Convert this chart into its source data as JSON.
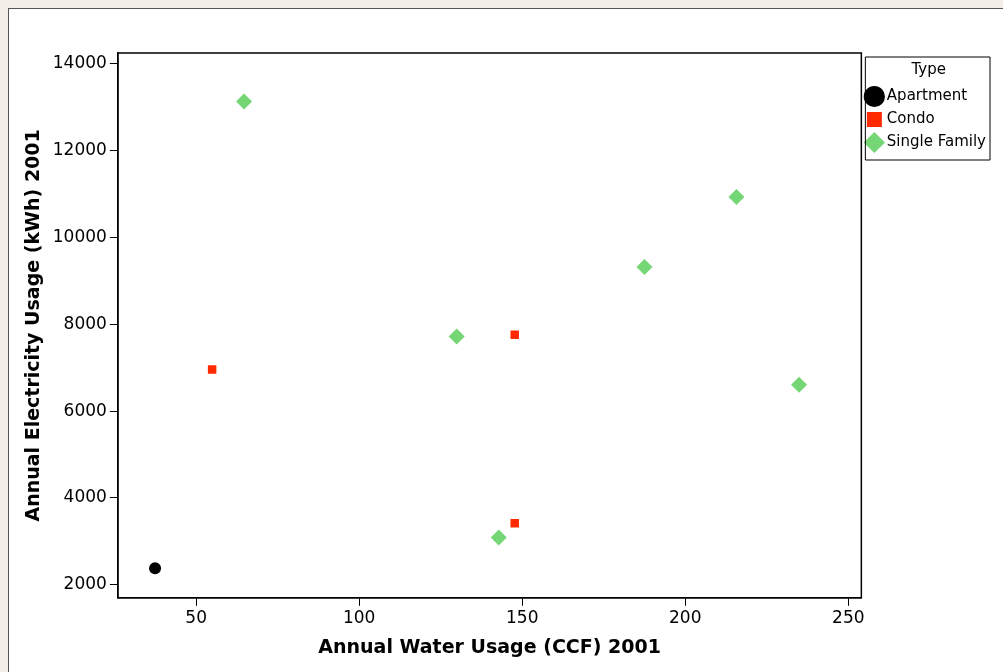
{
  "chart_data": {
    "type": "scatter",
    "xlabel": "Annual Water Usage (CCF) 2001",
    "ylabel": "Annual Electricity Usage (kWh) 2001",
    "legend_title": "Type",
    "legend": "top right",
    "grid": false,
    "xlim": [
      26,
      254
    ],
    "xticks": [
      50,
      100,
      150,
      200,
      250
    ],
    "ylim": [
      1700,
      14250
    ],
    "yticks": [
      2000,
      4000,
      6000,
      8000,
      10000,
      12000,
      14000
    ],
    "series": [
      {
        "name": "Apartment",
        "color": "#000000",
        "marker": "circle",
        "x": [
          37.4
        ],
        "values": [
          2380
        ]
      },
      {
        "name": "Condo",
        "color": "#ff2a00",
        "marker": "square",
        "x": [
          54.9,
          147.7,
          147.7
        ],
        "values": [
          6960,
          7760,
          3420
        ]
      },
      {
        "name": "Single Family",
        "color": "#74d674",
        "marker": "diamond",
        "x": [
          64.7,
          129.9,
          142.8,
          187.5,
          215.7,
          234.9
        ],
        "values": [
          13130,
          7720,
          3090,
          9320,
          10930,
          6610
        ]
      }
    ]
  }
}
